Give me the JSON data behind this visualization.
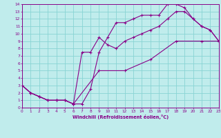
{
  "bg_color": "#c0ecec",
  "grid_color": "#88d4d4",
  "line_color": "#880088",
  "xlabel": "Windchill (Refroidissement éolien,°C)",
  "xlim": [
    0,
    23
  ],
  "ylim": [
    0,
    14
  ],
  "xticks": [
    0,
    1,
    2,
    3,
    4,
    5,
    6,
    7,
    8,
    9,
    10,
    11,
    12,
    13,
    14,
    15,
    16,
    17,
    18,
    19,
    20,
    21,
    22,
    23
  ],
  "yticks": [
    0,
    1,
    2,
    3,
    4,
    5,
    6,
    7,
    8,
    9,
    10,
    11,
    12,
    13,
    14
  ],
  "line1_x": [
    0,
    1,
    2,
    3,
    4,
    5,
    6,
    7,
    8,
    9,
    10,
    11,
    12,
    13,
    14,
    15,
    16,
    17,
    18,
    19,
    20,
    21,
    22,
    23
  ],
  "line1_y": [
    3,
    2,
    1.5,
    1,
    1,
    1,
    0.5,
    0.5,
    2.5,
    7.5,
    9.5,
    11.5,
    11.5,
    12,
    12.5,
    12.5,
    12.5,
    14,
    14,
    13.5,
    12,
    11,
    10.5,
    9
  ],
  "line2_x": [
    0,
    1,
    2,
    3,
    4,
    5,
    6,
    7,
    8,
    9,
    10,
    11,
    12,
    13,
    14,
    15,
    16,
    17,
    18,
    19,
    20,
    21,
    22,
    23
  ],
  "line2_y": [
    3,
    2,
    1.5,
    1,
    1,
    1,
    0.5,
    7.5,
    7.5,
    9.5,
    8.5,
    8,
    9,
    9.5,
    10,
    10.5,
    11,
    12,
    13,
    13,
    12,
    11,
    10.5,
    9
  ],
  "line3_x": [
    0,
    1,
    2,
    3,
    4,
    5,
    6,
    9,
    12,
    15,
    18,
    21,
    23
  ],
  "line3_y": [
    3,
    2,
    1.5,
    1,
    1,
    1,
    0.5,
    5,
    5,
    6.5,
    9,
    9,
    9
  ]
}
